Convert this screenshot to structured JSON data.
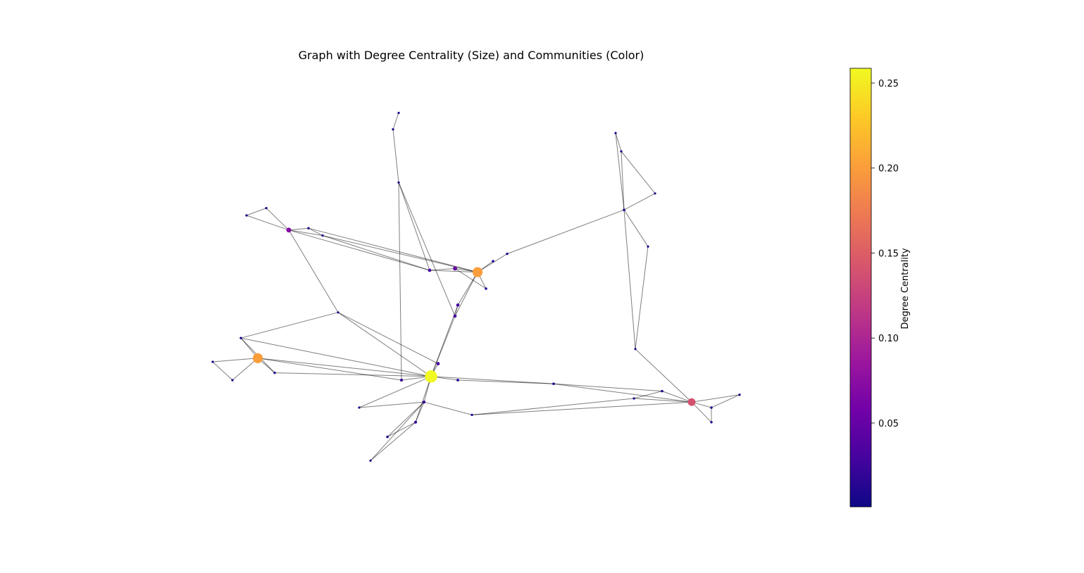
{
  "chart_data": {
    "type": "network",
    "title": "Graph with Degree Centrality (Size) and Communities (Color)",
    "colorbar_label": "Degree Centrality",
    "colormap": "plasma",
    "xlim": [
      -1,
      1
    ],
    "ylim": [
      -1,
      1
    ],
    "clim": [
      0.0007,
      0.2587
    ],
    "cticks": [
      0.05,
      {
        "value": 0.1,
        "label": "0.10"
      },
      0.15,
      {
        "value": 0.2,
        "label": "0.20"
      },
      0.25
    ],
    "edge_color": "#000000",
    "nodes": {
      "x": [
        -0.145,
        -0.76,
        0.02,
        0.78,
        -0.65,
        -0.06,
        -0.15,
        -0.05,
        -0.06,
        0.29,
        0.54,
        -0.26,
        -0.28,
        -0.26,
        0.51,
        0.53,
        0.65,
        -0.8,
        -0.58,
        -0.53,
        -0.73,
        -0.82,
        -0.92,
        -0.7,
        -0.85,
        -0.12,
        -0.25,
        -0.05,
        -0.17,
        -0.2,
        -0.3,
        -0.36,
        0.075,
        0.05,
        0.125,
        0.675,
        0.85,
        0.95,
        0.85,
        0.575,
        0.58,
        0.0,
        -0.4,
        -0.475,
        0.625
      ],
      "y": [
        -0.48,
        -0.38,
        0.09,
        -0.62,
        0.32,
        0.11,
        0.1,
        -0.09,
        -0.15,
        -0.52,
        0.43,
        0.96,
        0.87,
        0.58,
        0.85,
        0.75,
        0.52,
        0.4,
        0.33,
        0.29,
        0.44,
        -0.27,
        -0.4,
        -0.46,
        -0.5,
        -0.41,
        -0.5,
        -0.5,
        -0.62,
        -0.73,
        -0.81,
        -0.94,
        0.15,
        0.0,
        0.19,
        -0.56,
        -0.65,
        -0.58,
        -0.73,
        -0.6,
        -0.33,
        -0.69,
        -0.65,
        -0.13,
        0.23
      ],
      "centrality": [
        0.259,
        0.2,
        0.2,
        0.14,
        0.07,
        0.05,
        0.03,
        0.03,
        0.03,
        0.01,
        0.01,
        0.005,
        0.005,
        0.004,
        0.005,
        0.005,
        0.004,
        0.006,
        0.006,
        0.005,
        0.005,
        0.008,
        0.006,
        0.008,
        0.006,
        0.03,
        0.02,
        0.015,
        0.02,
        0.02,
        0.01,
        0.004,
        0.01,
        0.01,
        0.006,
        0.01,
        0.01,
        0.006,
        0.008,
        0.006,
        0.003,
        0.004,
        0.004,
        0.003,
        0.003
      ]
    },
    "edges": [
      [
        0,
        25
      ],
      [
        0,
        26
      ],
      [
        0,
        27
      ],
      [
        0,
        28
      ],
      [
        0,
        29
      ],
      [
        0,
        7
      ],
      [
        0,
        8
      ],
      [
        0,
        9
      ],
      [
        0,
        42
      ],
      [
        0,
        43
      ],
      [
        0,
        1
      ],
      [
        0,
        23
      ],
      [
        0,
        21
      ],
      [
        1,
        21
      ],
      [
        1,
        22
      ],
      [
        1,
        23
      ],
      [
        1,
        24
      ],
      [
        1,
        26
      ],
      [
        22,
        24
      ],
      [
        21,
        23
      ],
      [
        2,
        5
      ],
      [
        2,
        6
      ],
      [
        2,
        32
      ],
      [
        2,
        33
      ],
      [
        2,
        34
      ],
      [
        2,
        7
      ],
      [
        2,
        8
      ],
      [
        2,
        18
      ],
      [
        2,
        19
      ],
      [
        5,
        6
      ],
      [
        5,
        33
      ],
      [
        7,
        8
      ],
      [
        4,
        17
      ],
      [
        4,
        18
      ],
      [
        4,
        19
      ],
      [
        4,
        20
      ],
      [
        4,
        6
      ],
      [
        4,
        43
      ],
      [
        17,
        20
      ],
      [
        18,
        19
      ],
      [
        19,
        6
      ],
      [
        3,
        35
      ],
      [
        3,
        36
      ],
      [
        3,
        37
      ],
      [
        3,
        38
      ],
      [
        3,
        39
      ],
      [
        3,
        9
      ],
      [
        3,
        41
      ],
      [
        3,
        40
      ],
      [
        36,
        37
      ],
      [
        36,
        38
      ],
      [
        35,
        39
      ],
      [
        10,
        14
      ],
      [
        10,
        15
      ],
      [
        10,
        16
      ],
      [
        10,
        44
      ],
      [
        10,
        40
      ],
      [
        10,
        34
      ],
      [
        14,
        15
      ],
      [
        15,
        16
      ],
      [
        44,
        40
      ],
      [
        11,
        12
      ],
      [
        12,
        13
      ],
      [
        13,
        6
      ],
      [
        13,
        8
      ],
      [
        13,
        26
      ],
      [
        28,
        29
      ],
      [
        28,
        30
      ],
      [
        28,
        31
      ],
      [
        28,
        42
      ],
      [
        28,
        41
      ],
      [
        29,
        30
      ],
      [
        29,
        31
      ],
      [
        41,
        39
      ],
      [
        9,
        35
      ],
      [
        9,
        27
      ],
      [
        43,
        21
      ],
      [
        43,
        25
      ]
    ]
  }
}
